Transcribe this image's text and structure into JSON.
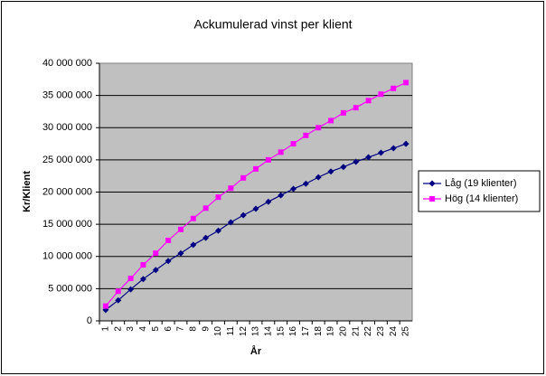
{
  "chart_data": {
    "type": "line",
    "title": "Ackumulerad vinst per klient",
    "x_label": "År",
    "y_label": "Kr/Klient",
    "categories": [
      "1",
      "2",
      "3",
      "4",
      "5",
      "6",
      "7",
      "8",
      "9",
      "10",
      "11",
      "12",
      "13",
      "14",
      "15",
      "16",
      "17",
      "18",
      "19",
      "20",
      "21",
      "22",
      "23",
      "24",
      "25"
    ],
    "series": [
      {
        "name": "Låg (19 klienter)",
        "color": "#000080",
        "marker": "diamond",
        "values": [
          1700000,
          3200000,
          4900000,
          6500000,
          7900000,
          9300000,
          10500000,
          11800000,
          12900000,
          14000000,
          15300000,
          16400000,
          17400000,
          18500000,
          19500000,
          20500000,
          21300000,
          22300000,
          23200000,
          23900000,
          24700000,
          25400000,
          26100000,
          26800000,
          27500000
        ]
      },
      {
        "name": "Hög (14 klienter)",
        "color": "#ff00ff",
        "marker": "square",
        "values": [
          2300000,
          4600000,
          6600000,
          8700000,
          10500000,
          12500000,
          14200000,
          15900000,
          17500000,
          19200000,
          20600000,
          22200000,
          23600000,
          25000000,
          26200000,
          27500000,
          28800000,
          30000000,
          31100000,
          32300000,
          33100000,
          34200000,
          35200000,
          36100000,
          37000000
        ]
      }
    ],
    "ylim": [
      0,
      40000000
    ],
    "yticks": [
      0,
      {
        "value": 5000000,
        "label": "5 000 000"
      },
      {
        "value": 10000000,
        "label": "10 000 000"
      },
      {
        "value": 15000000,
        "label": "15 000 000"
      },
      {
        "value": 20000000,
        "label": "20 000 000"
      },
      {
        "value": 25000000,
        "label": "25 000 000"
      },
      {
        "value": 30000000,
        "label": "30 000 000"
      },
      {
        "value": 35000000,
        "label": "35 000 000"
      },
      {
        "value": 40000000,
        "label": "40 000 000"
      }
    ],
    "grid": true,
    "legend": "right"
  }
}
